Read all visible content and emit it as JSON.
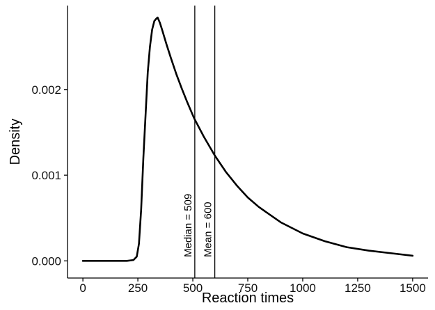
{
  "chart_data": {
    "type": "line",
    "title": "",
    "xlabel": "Reaction times",
    "ylabel": "Density",
    "xlim": [
      -70,
      1570
    ],
    "ylim": [
      -0.0002,
      0.00298
    ],
    "x_ticks": [
      0,
      250,
      500,
      750,
      1000,
      1250,
      1500
    ],
    "x_tick_labels": [
      "0",
      "250",
      "500",
      "750",
      "1000",
      "1250",
      "1500"
    ],
    "y_ticks": [
      0.0,
      0.001,
      0.002
    ],
    "y_tick_labels": [
      "0.000",
      "0.001",
      "0.002"
    ],
    "grid": false,
    "legend": "none",
    "series": [
      {
        "x": [
          0,
          100,
          200,
          230,
          245,
          255,
          265,
          275,
          285,
          295,
          305,
          315,
          325,
          335,
          340,
          350,
          360,
          380,
          400,
          425,
          450,
          475,
          500,
          509,
          550,
          600,
          650,
          700,
          750,
          800,
          900,
          1000,
          1100,
          1200,
          1300,
          1400,
          1500
        ],
        "y": [
          0.0,
          0.0,
          0.0,
          1e-05,
          5e-05,
          0.0002,
          0.0006,
          0.0012,
          0.0017,
          0.0022,
          0.0025,
          0.0027,
          0.0028,
          0.00283,
          0.00284,
          0.00278,
          0.0027,
          0.00253,
          0.00237,
          0.00218,
          0.00201,
          0.00185,
          0.0017,
          0.00165,
          0.00145,
          0.00123,
          0.00104,
          0.00088,
          0.00074,
          0.00063,
          0.00045,
          0.00032,
          0.00023,
          0.00016,
          0.00012,
          9e-05,
          6e-05
        ]
      }
    ],
    "reference_lines": [
      {
        "x": 509,
        "label": "Median = 509"
      },
      {
        "x": 600,
        "label": "Mean = 600"
      }
    ]
  }
}
